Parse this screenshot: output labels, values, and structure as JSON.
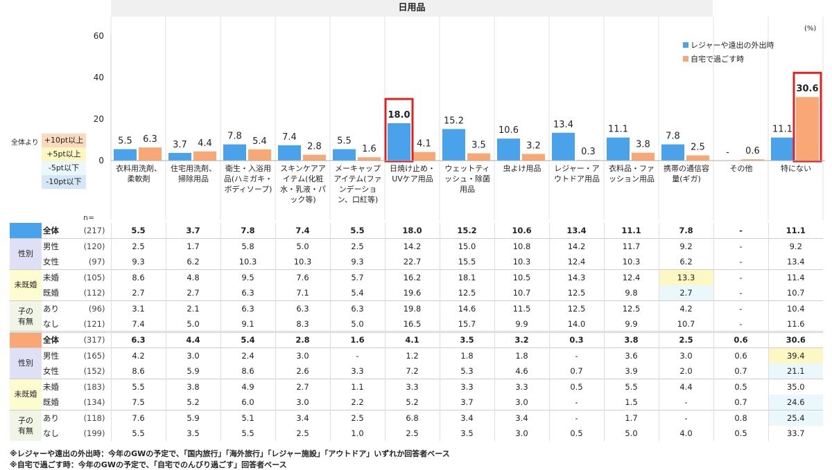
{
  "title": "日用品",
  "unit": "(%)",
  "legend": {
    "leisure": "レジャーや遠出の外出時",
    "home": "自宅で過ごす時"
  },
  "colors": {
    "leisure": "#4aa3ea",
    "home": "#f9a875",
    "plus10": "#fcd9bd",
    "plus5": "#fdf7c3",
    "minus5": "#eaf8fb",
    "minus10": "#d4e6f8",
    "highlight_box": "#e02020"
  },
  "diff_legend": {
    "label": "全体より",
    "items": [
      "+10pt以上",
      "+5pt以上",
      "-5pt以下",
      "-10pt以下"
    ]
  },
  "n_label": "n=",
  "chart_data": {
    "type": "bar",
    "title": "日用品",
    "ylim": [
      0,
      60
    ],
    "yticks": [
      0,
      20,
      40,
      60
    ],
    "categories": [
      "衣料用洗剤、柔軟剤",
      "住宅用洗剤、掃除用品",
      "衛生・入浴用品(ハミガキ・ボディソープ)",
      "スキンケアアイテム(化粧水・乳液・パック等)",
      "メーキャップアイテム(ファンデーション、口紅等)",
      "日焼け止め・UVケア用品",
      "ウェットティッシュ・除菌用品",
      "虫よけ用品",
      "レジャー・アウトドア用品",
      "衣料品・ファッション用品",
      "携帯の通信容量(ギガ)",
      "その他",
      "特にない"
    ],
    "series": [
      {
        "name": "レジャーや遠出の外出時",
        "values": [
          5.5,
          3.7,
          7.8,
          7.4,
          5.5,
          18.0,
          15.2,
          10.6,
          13.4,
          11.1,
          7.8,
          null,
          11.1
        ],
        "labels": [
          "5.5",
          "3.7",
          "7.8",
          "7.4",
          "5.5",
          "18.0",
          "15.2",
          "10.6",
          "13.4",
          "11.1",
          "7.8",
          "-",
          "11.1"
        ]
      },
      {
        "name": "自宅で過ごす時",
        "values": [
          6.3,
          4.4,
          5.4,
          2.8,
          1.6,
          4.1,
          3.5,
          3.2,
          0.3,
          3.8,
          2.5,
          0.6,
          30.6
        ],
        "labels": [
          "6.3",
          "4.4",
          "5.4",
          "2.8",
          "1.6",
          "4.1",
          "3.5",
          "3.2",
          "0.3",
          "3.8",
          "2.5",
          "0.6",
          "30.6"
        ]
      }
    ],
    "highlighted": [
      {
        "series": 0,
        "category": 5
      },
      {
        "series": 1,
        "category": 12
      }
    ]
  },
  "table": {
    "groups": [
      {
        "color": "leisure",
        "rows": [
          {
            "grp": "",
            "label": "全体",
            "n": "(217)",
            "bold": true,
            "values": [
              "5.5",
              "3.7",
              "7.8",
              "7.4",
              "5.5",
              "18.0",
              "15.2",
              "10.6",
              "13.4",
              "11.1",
              "7.8",
              "-",
              "11.1"
            ]
          },
          {
            "grp": "性別",
            "label": "男性",
            "n": "(120)",
            "values": [
              "2.5",
              "1.7",
              "5.8",
              "5.0",
              "2.5",
              "14.2",
              "15.0",
              "10.8",
              "14.2",
              "11.7",
              "9.2",
              "-",
              "9.2"
            ]
          },
          {
            "label": "女性",
            "n": "(97)",
            "values": [
              "9.3",
              "6.2",
              "10.3",
              "10.3",
              "9.3",
              "22.7",
              "15.5",
              "10.3",
              "12.4",
              "10.3",
              "6.2",
              "-",
              "13.4"
            ]
          },
          {
            "grp": "未既婚",
            "label": "未婚",
            "n": "(105)",
            "values": [
              "8.6",
              "4.8",
              "9.5",
              "7.6",
              "5.7",
              "16.2",
              "18.1",
              "10.5",
              "14.3",
              "12.4",
              "13.3",
              "-",
              "11.4"
            ],
            "hl": {
              "10": "plus5"
            }
          },
          {
            "label": "既婚",
            "n": "(112)",
            "values": [
              "2.7",
              "2.7",
              "6.3",
              "7.1",
              "5.4",
              "19.6",
              "12.5",
              "10.7",
              "12.5",
              "9.8",
              "2.7",
              "-",
              "10.7"
            ],
            "hl": {
              "10": "minus5"
            }
          },
          {
            "grp": "子の有無",
            "label": "あり",
            "n": "(96)",
            "values": [
              "3.1",
              "2.1",
              "6.3",
              "6.3",
              "6.3",
              "19.8",
              "14.6",
              "11.5",
              "12.5",
              "12.5",
              "4.2",
              "-",
              "10.4"
            ]
          },
          {
            "label": "なし",
            "n": "(121)",
            "values": [
              "7.4",
              "5.0",
              "9.1",
              "8.3",
              "5.0",
              "16.5",
              "15.7",
              "9.9",
              "14.0",
              "9.9",
              "10.7",
              "-",
              "11.6"
            ]
          }
        ]
      },
      {
        "color": "home",
        "rows": [
          {
            "grp": "",
            "label": "全体",
            "n": "(317)",
            "bold": true,
            "values": [
              "6.3",
              "4.4",
              "5.4",
              "2.8",
              "1.6",
              "4.1",
              "3.5",
              "3.2",
              "0.3",
              "3.8",
              "2.5",
              "0.6",
              "30.6"
            ]
          },
          {
            "grp": "性別",
            "label": "男性",
            "n": "(165)",
            "values": [
              "4.2",
              "3.0",
              "2.4",
              "3.0",
              "-",
              "1.2",
              "1.8",
              "1.8",
              "-",
              "3.6",
              "3.0",
              "0.6",
              "39.4"
            ],
            "hl": {
              "12": "plus5"
            }
          },
          {
            "label": "女性",
            "n": "(152)",
            "values": [
              "8.6",
              "5.9",
              "8.6",
              "2.6",
              "3.3",
              "7.2",
              "5.3",
              "4.6",
              "0.7",
              "3.9",
              "2.0",
              "0.7",
              "21.1"
            ],
            "hl": {
              "12": "minus5"
            }
          },
          {
            "grp": "未既婚",
            "label": "未婚",
            "n": "(183)",
            "values": [
              "5.5",
              "3.8",
              "4.9",
              "2.7",
              "1.1",
              "3.3",
              "3.3",
              "3.3",
              "0.5",
              "5.5",
              "4.4",
              "0.5",
              "35.0"
            ]
          },
          {
            "label": "既婚",
            "n": "(134)",
            "values": [
              "7.5",
              "5.2",
              "6.0",
              "3.0",
              "2.2",
              "5.2",
              "3.7",
              "3.0",
              "-",
              "1.5",
              "-",
              "0.7",
              "24.6"
            ],
            "hl": {
              "12": "minus5"
            }
          },
          {
            "grp": "子の有無",
            "label": "あり",
            "n": "(118)",
            "values": [
              "7.6",
              "5.9",
              "5.1",
              "3.4",
              "2.5",
              "6.8",
              "3.4",
              "3.4",
              "-",
              "1.7",
              "-",
              "0.8",
              "25.4"
            ],
            "hl": {
              "12": "minus5"
            }
          },
          {
            "label": "なし",
            "n": "(199)",
            "values": [
              "5.5",
              "3.5",
              "5.5",
              "2.5",
              "1.0",
              "2.5",
              "3.5",
              "3.0",
              "0.5",
              "5.0",
              "4.0",
              "0.5",
              "33.7"
            ]
          }
        ]
      }
    ],
    "group_colors": {
      "性別": "#dfe0f5",
      "未既婚": "#fdfbd0",
      "子の有無": "#f1f5e6"
    }
  },
  "footnotes": [
    "※レジャーや遠出の外出時：今年のGWの予定で、「国内旅行」「海外旅行」「レジャー施設」「アウトドア」いずれか回答者ベース",
    "※自宅で過ごす時：今年のGWの予定で、「自宅でのんびり過ごす」回答者ベース"
  ]
}
